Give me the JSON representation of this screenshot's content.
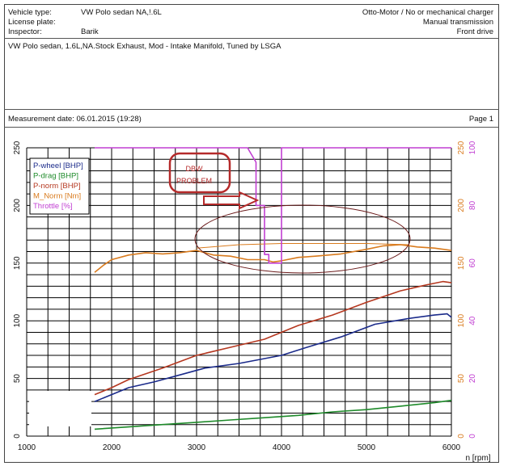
{
  "header": {
    "vehicle_type_label": "Vehicle type:",
    "vehicle_type_value": "VW Polo sedan NA,!.6L",
    "license_label": "License plate:",
    "inspector_label": "Inspector:",
    "inspector_value": "Barik",
    "engine_info": "Otto-Motor / No or mechanical charger",
    "transmission": "Manual transmission",
    "drive": "Front drive",
    "description": "VW Polo sedan, 1.6L,NA.Stock Exhaust, Mod - Intake Manifold, Tuned by LSGA",
    "measurement_date": "Measurement date: 06.01.2015 (19:28)",
    "page": "Page 1"
  },
  "annotation": {
    "text_line1": "DBW",
    "text_line2": "PROBLEM"
  },
  "colors": {
    "p_wheel": "#1a2a8a",
    "p_drag": "#1e8a2a",
    "p_norm": "#b5371f",
    "m_norm": "#d97b1e",
    "throttle": "#c13fd2",
    "annotation": "#b52a2a"
  },
  "chart_data": {
    "type": "line",
    "xlabel": "n [rpm]",
    "xlim": [
      1000,
      6000
    ],
    "x_ticks": [
      1000,
      2000,
      3000,
      4000,
      5000,
      6000
    ],
    "left_axis": {
      "ylim": [
        0,
        250
      ],
      "ticks": [
        0,
        50,
        100,
        150,
        200,
        250
      ]
    },
    "right_axis_torque": {
      "ylim": [
        0,
        250
      ],
      "ticks": [
        0,
        50,
        100,
        150,
        200,
        250
      ]
    },
    "right_axis_throttle": {
      "ylim": [
        0,
        100
      ],
      "ticks": [
        0,
        20,
        40,
        60,
        80,
        100
      ]
    },
    "grid": true,
    "legend_placement": "top-left",
    "series": [
      {
        "name": "P-wheel [BHP]",
        "color_key": "p_wheel",
        "axis": "left",
        "x": [
          1800,
          2000,
          2200,
          2500,
          2800,
          3100,
          3500,
          4000,
          4300,
          4700,
          5100,
          5500,
          5800,
          5950,
          6000
        ],
        "y": [
          30,
          36,
          42,
          47,
          53,
          59,
          63,
          70,
          77,
          86,
          97,
          102,
          105,
          106,
          103
        ]
      },
      {
        "name": "P-drag [BHP]",
        "color_key": "p_drag",
        "axis": "left",
        "x": [
          1800,
          2200,
          2600,
          3000,
          3400,
          3800,
          4200,
          4600,
          5000,
          5400,
          5800,
          6000
        ],
        "y": [
          6,
          8,
          10,
          12,
          14,
          16,
          18,
          21,
          23,
          26,
          29,
          31
        ]
      },
      {
        "name": "P-norm [BHP]",
        "color_key": "p_norm",
        "axis": "left",
        "x": [
          1800,
          2000,
          2200,
          2600,
          3000,
          3400,
          3800,
          4200,
          4600,
          5000,
          5400,
          5700,
          5900,
          6000
        ],
        "y": [
          36,
          42,
          49,
          59,
          70,
          77,
          84,
          96,
          105,
          116,
          126,
          131,
          134,
          133
        ]
      },
      {
        "name": "M_Norm [Nm]",
        "color_key": "m_norm",
        "axis": "right_torque",
        "x": [
          1800,
          1900,
          2000,
          2200,
          2400,
          2600,
          2800,
          3000,
          3200,
          3400,
          3600,
          3800,
          3900,
          4000,
          4200,
          4400,
          4700,
          5000,
          5200,
          5400,
          5600,
          5800,
          6000
        ],
        "y": [
          142,
          148,
          153,
          157,
          159,
          158,
          159,
          161,
          157,
          156,
          153,
          153,
          151,
          152,
          155,
          156,
          158,
          162,
          165,
          166,
          164,
          163,
          161
        ]
      },
      {
        "name": "Throttle [%]",
        "color_key": "throttle",
        "axis": "right_throttle",
        "x": [
          1800,
          3500,
          3600,
          3700,
          3700,
          3800,
          3800,
          3850,
          3850,
          4000,
          4000,
          6000
        ],
        "y": [
          100,
          100,
          100,
          95,
          80,
          80,
          63,
          63,
          60,
          60,
          100,
          100
        ]
      },
      {
        "name": "",
        "color_key": "m_norm",
        "axis": "right_torque",
        "x": [
          3000,
          3500,
          4000,
          4500,
          5000,
          5500
        ],
        "y": [
          163,
          166,
          167,
          167,
          167,
          166
        ]
      }
    ]
  }
}
